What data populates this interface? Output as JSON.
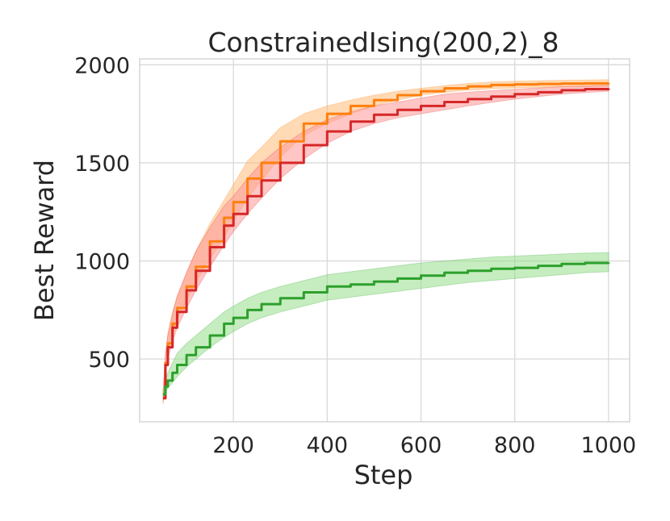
{
  "chart_data": {
    "type": "line",
    "title": "ConstrainedIsing(200,2)_8",
    "xlabel": "Step",
    "ylabel": "Best Reward",
    "xlim": [
      0,
      1045
    ],
    "ylim": [
      180,
      2030
    ],
    "xticks": [
      200,
      400,
      600,
      800,
      1000
    ],
    "yticks": [
      500,
      1000,
      1500,
      2000
    ],
    "grid": true,
    "series": [
      {
        "color": "#ff7f0e",
        "fill_color": "#ffbb78",
        "x": [
          50,
          55,
          60,
          70,
          80,
          100,
          120,
          150,
          180,
          200,
          230,
          260,
          300,
          350,
          400,
          450,
          500,
          550,
          600,
          650,
          700,
          750,
          800,
          850,
          900,
          950,
          1000
        ],
        "y": [
          300,
          480,
          580,
          680,
          760,
          870,
          970,
          1100,
          1220,
          1300,
          1420,
          1500,
          1610,
          1700,
          1750,
          1790,
          1820,
          1845,
          1865,
          1880,
          1890,
          1897,
          1900,
          1902,
          1904,
          1905,
          1907
        ],
        "lower": [
          280,
          440,
          530,
          620,
          700,
          800,
          890,
          1010,
          1120,
          1200,
          1320,
          1410,
          1530,
          1640,
          1700,
          1750,
          1790,
          1820,
          1845,
          1860,
          1870,
          1878,
          1882,
          1885,
          1887,
          1888,
          1890
        ],
        "upper": [
          320,
          520,
          630,
          740,
          820,
          940,
          1050,
          1190,
          1310,
          1390,
          1510,
          1580,
          1680,
          1750,
          1790,
          1820,
          1845,
          1865,
          1880,
          1893,
          1905,
          1912,
          1916,
          1919,
          1921,
          1922,
          1924
        ]
      },
      {
        "color": "#d62728",
        "fill_color": "#ff9896",
        "x": [
          50,
          55,
          60,
          70,
          80,
          100,
          120,
          150,
          180,
          200,
          230,
          260,
          300,
          350,
          400,
          450,
          500,
          550,
          600,
          650,
          700,
          750,
          800,
          850,
          900,
          950,
          1000
        ],
        "y": [
          300,
          470,
          560,
          660,
          740,
          850,
          950,
          1070,
          1180,
          1240,
          1330,
          1410,
          1500,
          1590,
          1660,
          1710,
          1745,
          1770,
          1790,
          1810,
          1825,
          1838,
          1850,
          1860,
          1870,
          1876,
          1880
        ],
        "lower": [
          270,
          420,
          500,
          590,
          660,
          760,
          850,
          970,
          1080,
          1150,
          1240,
          1320,
          1420,
          1520,
          1600,
          1660,
          1700,
          1730,
          1750,
          1770,
          1790,
          1808,
          1825,
          1838,
          1850,
          1858,
          1865
        ],
        "upper": [
          330,
          520,
          620,
          730,
          820,
          940,
          1050,
          1170,
          1280,
          1330,
          1420,
          1500,
          1580,
          1660,
          1720,
          1760,
          1790,
          1810,
          1830,
          1850,
          1860,
          1868,
          1875,
          1882,
          1888,
          1892,
          1895
        ]
      },
      {
        "color": "#2ca02c",
        "fill_color": "#98df8a",
        "x": [
          50,
          55,
          60,
          70,
          80,
          100,
          120,
          150,
          180,
          200,
          230,
          260,
          300,
          350,
          400,
          450,
          500,
          550,
          600,
          650,
          700,
          750,
          800,
          850,
          900,
          950,
          1000
        ],
        "y": [
          320,
          360,
          390,
          430,
          470,
          520,
          560,
          620,
          680,
          710,
          750,
          780,
          810,
          840,
          870,
          880,
          895,
          910,
          925,
          940,
          950,
          960,
          965,
          975,
          985,
          990,
          993
        ],
        "lower": [
          300,
          330,
          350,
          380,
          410,
          460,
          500,
          560,
          610,
          640,
          680,
          710,
          740,
          770,
          800,
          815,
          830,
          845,
          860,
          875,
          890,
          900,
          910,
          920,
          930,
          940,
          945
        ],
        "upper": [
          340,
          390,
          430,
          480,
          530,
          580,
          620,
          680,
          740,
          770,
          810,
          840,
          870,
          900,
          930,
          945,
          960,
          975,
          990,
          1000,
          1010,
          1020,
          1025,
          1030,
          1035,
          1040,
          1042
        ]
      }
    ]
  }
}
